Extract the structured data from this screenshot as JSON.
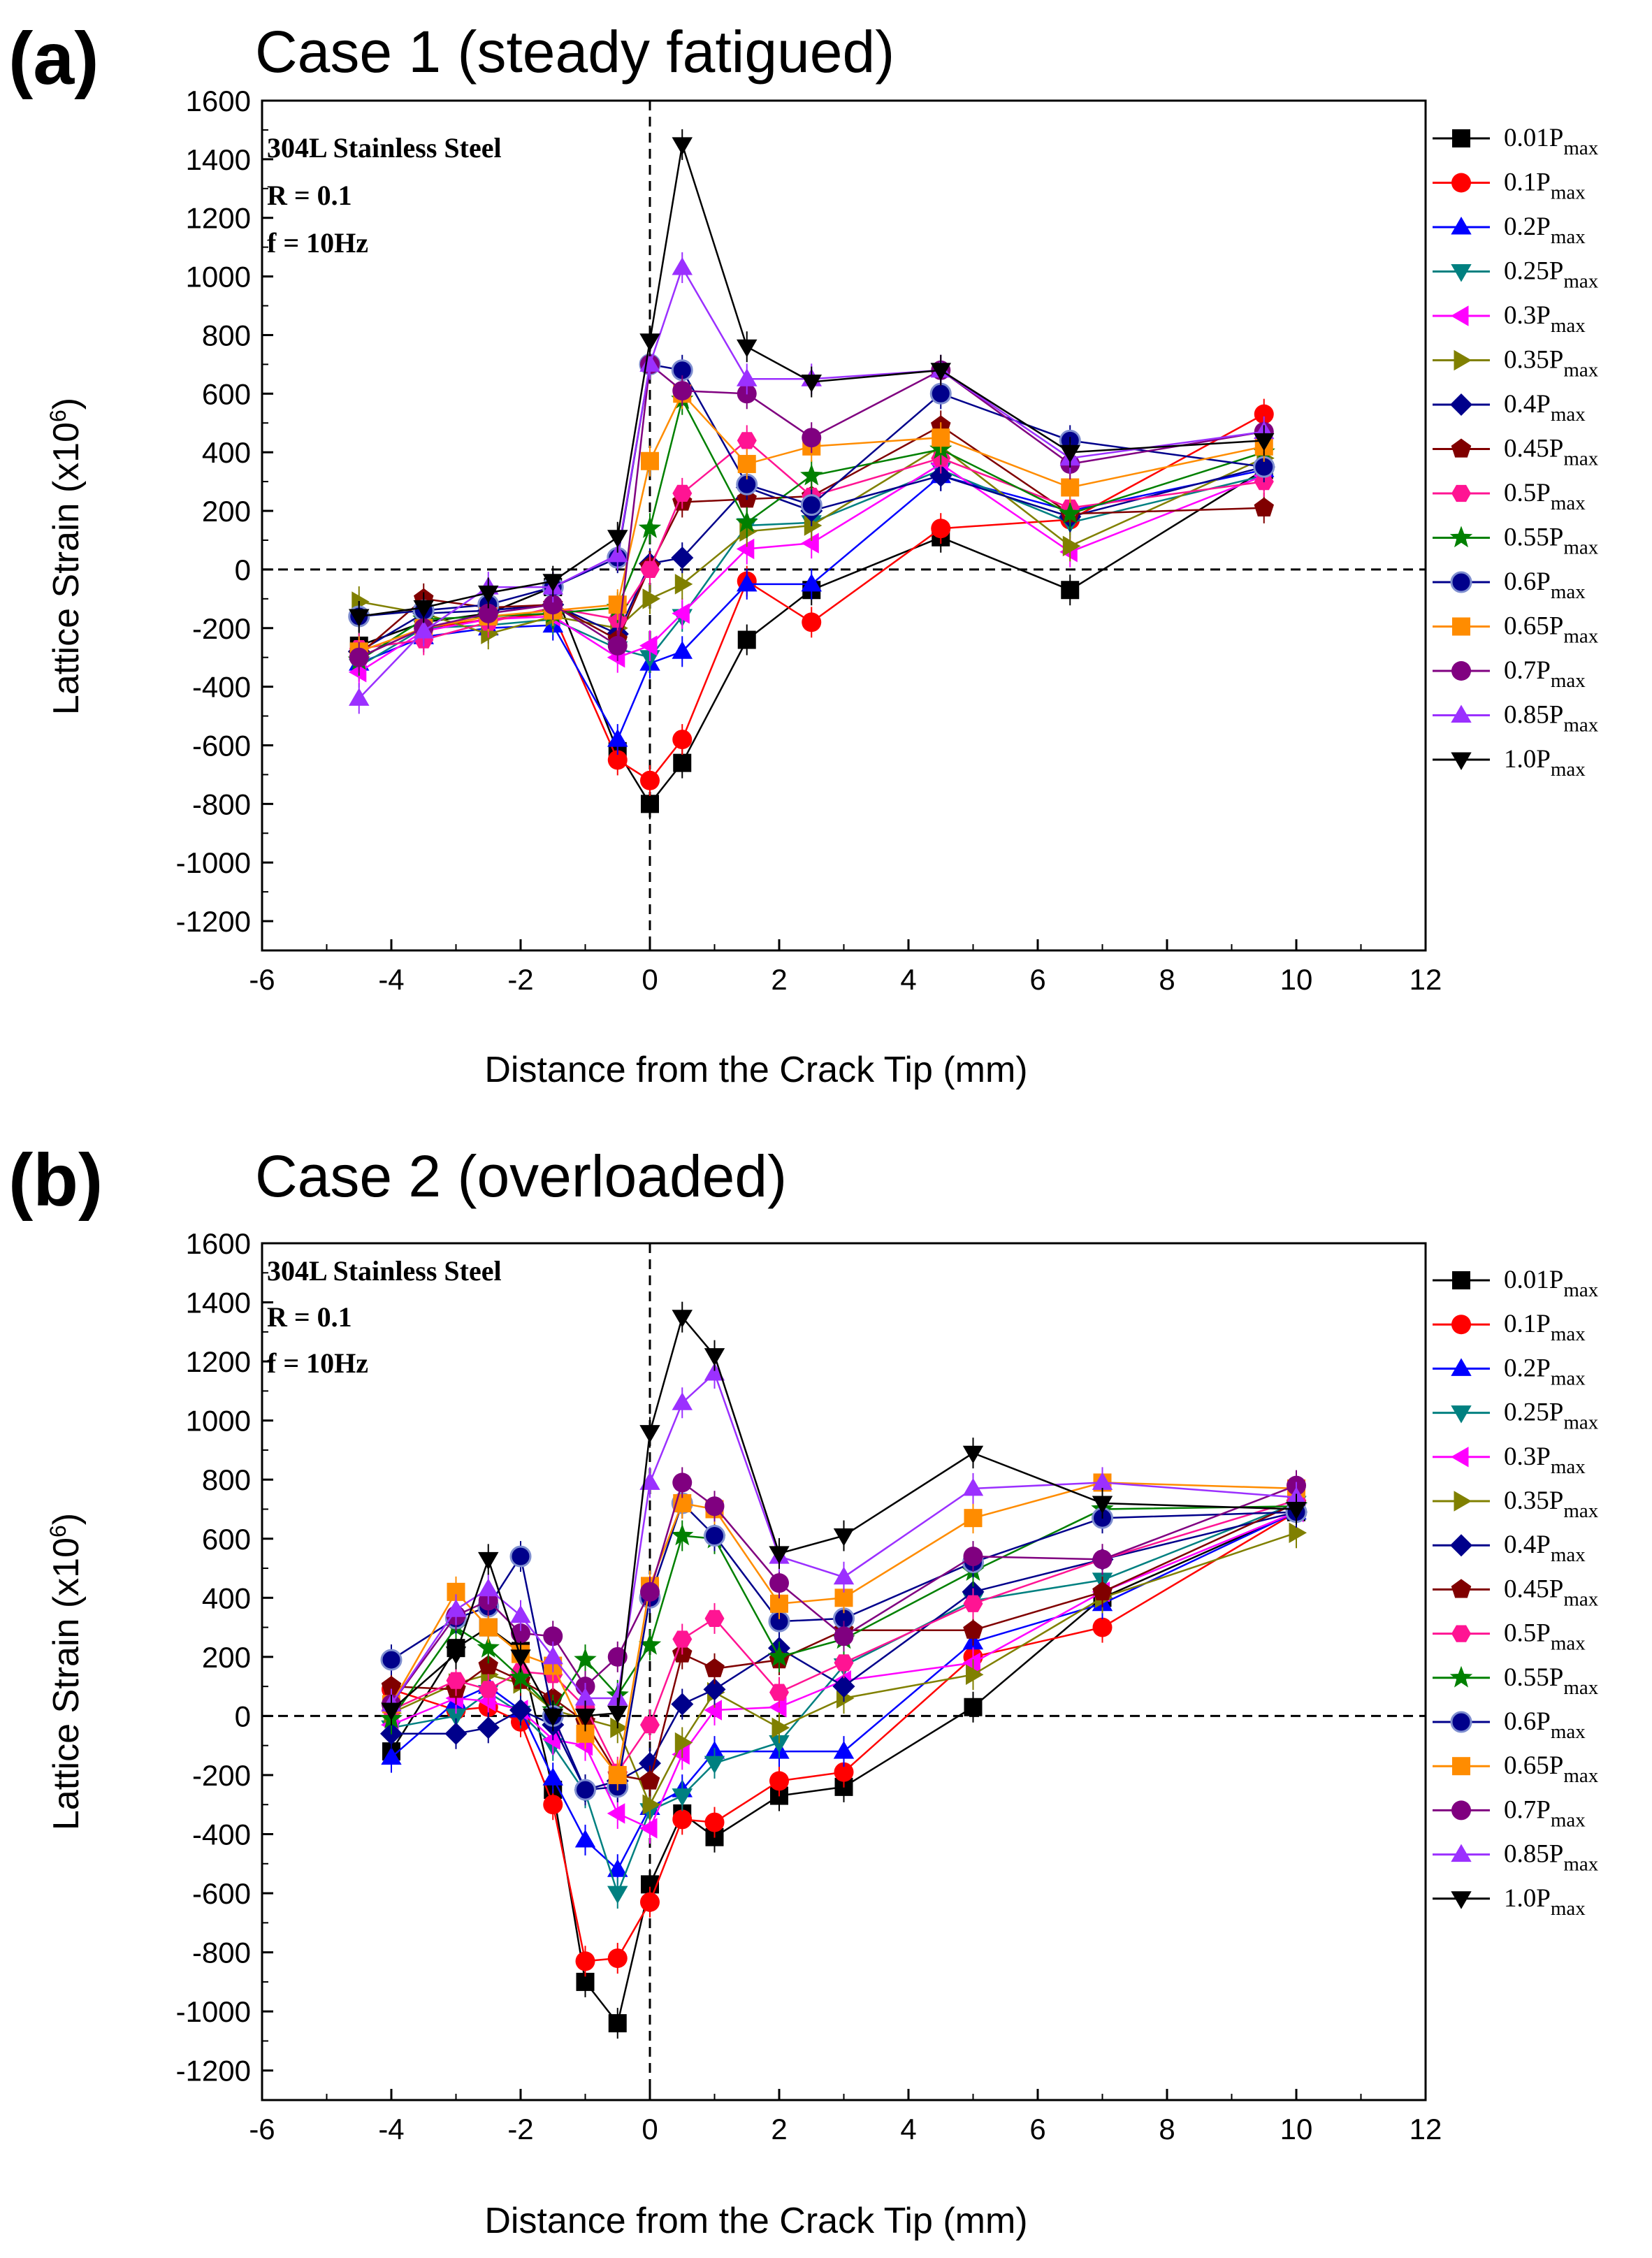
{
  "chart_data": [
    {
      "type": "line",
      "panel_label": "(a)",
      "title": "Case 1 (steady fatigued)",
      "xlabel": "Distance from the Crack Tip (mm)",
      "ylabel": "Lattice Strain (x10",
      "ylabel_superscript": "6",
      "ylabel_close": ")",
      "xlim": [
        -6,
        12
      ],
      "ylim": [
        -1300,
        1600
      ],
      "xticks": [
        "-6",
        "-4",
        "-2",
        "0",
        "2",
        "4",
        "6",
        "8",
        "10",
        "12"
      ],
      "yticks": [
        "1600",
        "1400",
        "1200",
        "1000",
        "800",
        "600",
        "400",
        "200",
        "0",
        "-200",
        "-400",
        "-600",
        "-800",
        "-1000",
        "-1200"
      ],
      "annotation": [
        "304L Stainless Steel",
        "R = 0.1",
        "f = 10Hz"
      ],
      "reference_lines": {
        "x": 0,
        "y": 0
      },
      "x": [
        -4.5,
        -3.5,
        -2.5,
        -1.5,
        -0.5,
        0,
        0.5,
        1.5,
        2.5,
        4.5,
        6.5,
        9.5
      ],
      "series": [
        {
          "name": "0.01P",
          "sub": "max",
          "color": "#000000",
          "marker": "square",
          "values": [
            -260,
            -180,
            -150,
            -60,
            -620,
            -800,
            -660,
            -240,
            -70,
            110,
            -70,
            340
          ]
        },
        {
          "name": "0.1P",
          "sub": "max",
          "color": "#ff0000",
          "marker": "circle",
          "values": [
            -300,
            -200,
            -170,
            -150,
            -650,
            -720,
            -580,
            -40,
            -180,
            140,
            170,
            530
          ]
        },
        {
          "name": "0.2P",
          "sub": "max",
          "color": "#0000ff",
          "marker": "triangle-up",
          "values": [
            -320,
            -230,
            -200,
            -190,
            -580,
            -320,
            -280,
            -50,
            -50,
            320,
            200,
            340
          ]
        },
        {
          "name": "0.25P",
          "sub": "max",
          "color": "#008080",
          "marker": "triangle-down",
          "values": [
            -330,
            -200,
            -190,
            -170,
            -270,
            -300,
            -160,
            150,
            160,
            340,
            160,
            320
          ]
        },
        {
          "name": "0.3P",
          "sub": "max",
          "color": "#ff00ff",
          "marker": "triangle-left",
          "values": [
            -350,
            -210,
            -170,
            -160,
            -300,
            -260,
            -150,
            70,
            90,
            360,
            60,
            320
          ]
        },
        {
          "name": "0.35P",
          "sub": "max",
          "color": "#808000",
          "marker": "triangle-right",
          "values": [
            -110,
            -150,
            -220,
            -160,
            -200,
            -100,
            -50,
            130,
            150,
            420,
            80,
            380
          ]
        },
        {
          "name": "0.4P",
          "sub": "max",
          "color": "#00008b",
          "marker": "diamond",
          "values": [
            -280,
            -150,
            -140,
            -120,
            -220,
            20,
            40,
            280,
            200,
            320,
            180,
            350
          ]
        },
        {
          "name": "0.45P",
          "sub": "max",
          "color": "#800000",
          "marker": "pentagon",
          "values": [
            -290,
            -100,
            -130,
            -120,
            -240,
            10,
            230,
            240,
            250,
            490,
            190,
            210
          ]
        },
        {
          "name": "0.5P",
          "sub": "max",
          "color": "#ff1493",
          "marker": "hexagon",
          "values": [
            -270,
            -240,
            -180,
            -130,
            -170,
            0,
            260,
            440,
            250,
            380,
            210,
            300
          ]
        },
        {
          "name": "0.55P",
          "sub": "max",
          "color": "#008000",
          "marker": "star",
          "values": [
            -310,
            -170,
            -160,
            -150,
            -130,
            140,
            580,
            160,
            320,
            410,
            190,
            400
          ]
        },
        {
          "name": "0.6P",
          "sub": "max",
          "color": "#00008b",
          "marker": "sphere",
          "values": [
            -160,
            -140,
            -120,
            -60,
            40,
            700,
            680,
            290,
            220,
            600,
            440,
            350
          ]
        },
        {
          "name": "0.65P",
          "sub": "max",
          "color": "#ff8c00",
          "marker": "square",
          "values": [
            -280,
            -200,
            -160,
            -140,
            -120,
            370,
            600,
            360,
            420,
            450,
            280,
            420
          ]
        },
        {
          "name": "0.7P",
          "sub": "max",
          "color": "#800080",
          "marker": "circle",
          "values": [
            -300,
            -200,
            -150,
            -120,
            -260,
            700,
            610,
            600,
            450,
            680,
            360,
            470
          ]
        },
        {
          "name": "0.85P",
          "sub": "max",
          "color": "#9b30ff",
          "marker": "triangle-up",
          "values": [
            -440,
            -210,
            -60,
            -60,
            50,
            700,
            1030,
            650,
            650,
            680,
            380,
            470
          ]
        },
        {
          "name": "1.0P",
          "sub": "max",
          "color": "#000000",
          "marker": "triangle-down",
          "values": [
            -160,
            -130,
            -80,
            -40,
            110,
            780,
            1450,
            760,
            640,
            680,
            400,
            440
          ]
        }
      ]
    },
    {
      "type": "line",
      "panel_label": "(b)",
      "title": "Case 2 (overloaded)",
      "xlabel": "Distance from the Crack Tip (mm)",
      "ylabel": "Lattice Strain (x10",
      "ylabel_superscript": "6",
      "ylabel_close": ")",
      "xlim": [
        -6,
        12
      ],
      "ylim": [
        -1300,
        1600
      ],
      "xticks": [
        "-6",
        "-4",
        "-2",
        "0",
        "2",
        "4",
        "6",
        "8",
        "10",
        "12"
      ],
      "yticks": [
        "1600",
        "1400",
        "1200",
        "1000",
        "800",
        "600",
        "400",
        "200",
        "0",
        "-200",
        "-400",
        "-600",
        "-800",
        "-1000",
        "-1200"
      ],
      "annotation": [
        "304L Stainless Steel",
        "R = 0.1",
        "f = 10Hz"
      ],
      "reference_lines": {
        "x": 0,
        "y": 0
      },
      "x": [
        -4,
        -3,
        -2.5,
        -2,
        -1.5,
        -1,
        -0.5,
        0,
        0.5,
        1,
        2,
        3,
        5,
        7,
        10
      ],
      "series": [
        {
          "name": "0.01P",
          "sub": "max",
          "color": "#000000",
          "marker": "square",
          "values": [
            -120,
            230,
            300,
            220,
            -250,
            -900,
            -1040,
            -570,
            -330,
            -410,
            -270,
            -240,
            30,
            400,
            690
          ]
        },
        {
          "name": "0.1P",
          "sub": "max",
          "color": "#ff0000",
          "marker": "circle",
          "values": [
            90,
            20,
            30,
            -20,
            -300,
            -830,
            -820,
            -630,
            -350,
            -360,
            -220,
            -190,
            200,
            300,
            690
          ]
        },
        {
          "name": "0.2P",
          "sub": "max",
          "color": "#0000ff",
          "marker": "triangle-up",
          "values": [
            -140,
            50,
            100,
            20,
            -210,
            -420,
            -520,
            -310,
            -250,
            -120,
            -120,
            -120,
            250,
            380,
            690
          ]
        },
        {
          "name": "0.25P",
          "sub": "max",
          "color": "#008080",
          "marker": "triangle-down",
          "values": [
            -40,
            0,
            80,
            10,
            -100,
            -260,
            -600,
            -320,
            -270,
            -160,
            -90,
            170,
            390,
            460,
            720
          ]
        },
        {
          "name": "0.3P",
          "sub": "max",
          "color": "#ff00ff",
          "marker": "triangle-left",
          "values": [
            -30,
            60,
            50,
            20,
            -80,
            -100,
            -330,
            -380,
            -130,
            20,
            30,
            120,
            180,
            420,
            690
          ]
        },
        {
          "name": "0.35P",
          "sub": "max",
          "color": "#808000",
          "marker": "triangle-right",
          "values": [
            10,
            110,
            140,
            110,
            20,
            -10,
            -40,
            -300,
            -90,
            80,
            -40,
            60,
            140,
            400,
            620
          ]
        },
        {
          "name": "0.4P",
          "sub": "max",
          "color": "#00008b",
          "marker": "diamond",
          "values": [
            -60,
            -60,
            -40,
            20,
            -30,
            -250,
            -220,
            -160,
            40,
            90,
            230,
            100,
            420,
            530,
            690
          ]
        },
        {
          "name": "0.45P",
          "sub": "max",
          "color": "#800000",
          "marker": "pentagon",
          "values": [
            100,
            90,
            170,
            120,
            60,
            -20,
            -200,
            -220,
            210,
            160,
            190,
            290,
            290,
            420,
            720
          ]
        },
        {
          "name": "0.5P",
          "sub": "max",
          "color": "#ff1493",
          "marker": "hexagon",
          "values": [
            20,
            120,
            90,
            150,
            140,
            30,
            -190,
            -30,
            260,
            330,
            80,
            180,
            380,
            530,
            730
          ]
        },
        {
          "name": "0.55P",
          "sub": "max",
          "color": "#008000",
          "marker": "star",
          "values": [
            -10,
            300,
            230,
            130,
            20,
            190,
            70,
            240,
            610,
            600,
            200,
            260,
            490,
            700,
            710
          ]
        },
        {
          "name": "0.6P",
          "sub": "max",
          "color": "#00008b",
          "marker": "sphere",
          "values": [
            190,
            330,
            370,
            540,
            0,
            -250,
            -240,
            400,
            720,
            610,
            320,
            330,
            520,
            670,
            690
          ]
        },
        {
          "name": "0.65P",
          "sub": "max",
          "color": "#ff8c00",
          "marker": "square",
          "values": [
            40,
            420,
            300,
            210,
            170,
            -60,
            -200,
            440,
            720,
            700,
            380,
            400,
            670,
            790,
            770
          ]
        },
        {
          "name": "0.7P",
          "sub": "max",
          "color": "#800080",
          "marker": "circle",
          "values": [
            40,
            340,
            390,
            280,
            270,
            100,
            200,
            420,
            790,
            710,
            450,
            270,
            540,
            530,
            780
          ]
        },
        {
          "name": "0.85P",
          "sub": "max",
          "color": "#9b30ff",
          "marker": "triangle-up",
          "values": [
            40,
            360,
            430,
            340,
            200,
            60,
            60,
            790,
            1060,
            1160,
            540,
            470,
            770,
            790,
            740
          ]
        },
        {
          "name": "1.0P",
          "sub": "max",
          "color": "#000000",
          "marker": "triangle-down",
          "values": [
            20,
            210,
            530,
            200,
            0,
            0,
            10,
            960,
            1350,
            1220,
            550,
            610,
            890,
            720,
            700
          ]
        }
      ]
    }
  ]
}
